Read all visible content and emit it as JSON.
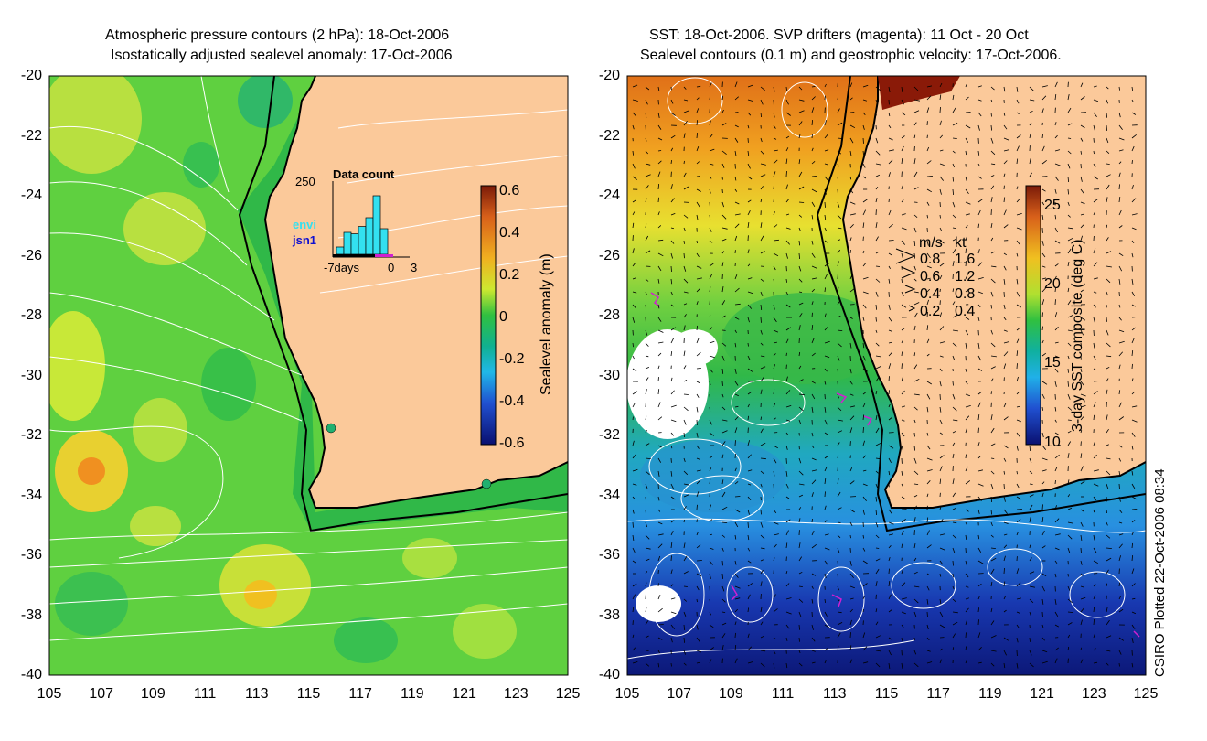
{
  "left_panel": {
    "title_line1": "Atmospheric pressure contours (2 hPa): 18-Oct-2006",
    "title_line2": "Isostatically adjusted sealevel anomaly: 17-Oct-2006",
    "colorbar": {
      "label": "Sealevel anomaly (m)",
      "ticks": [
        "0.6",
        "0.4",
        "0.2",
        "0",
        "-0.2",
        "-0.4",
        "-0.6"
      ]
    },
    "inset": {
      "title": "Data count",
      "ymax": "250",
      "xlabels": [
        "-7days",
        "0",
        "3"
      ],
      "missions": [
        "envi",
        "jsn1"
      ],
      "bars": [
        0.1,
        0.3,
        0.28,
        0.38,
        0.5,
        0.8,
        0.35
      ],
      "colors": {
        "envi": "#33e0f0",
        "jsn1": "#1010d0"
      }
    }
  },
  "right_panel": {
    "title_line1": "SST: 18-Oct-2006. SVP drifters (magenta): 11 Oct - 20 Oct",
    "title_line2": "Sealevel contours (0.1 m) and geostrophic velocity: 17-Oct-2006.",
    "colorbar": {
      "label": "3-day SST composite (deg C)",
      "ticks": [
        "25",
        "20",
        "15",
        "10"
      ]
    },
    "velocity_legend": {
      "header_ms": "m/s",
      "header_kt": "kt",
      "rows": [
        {
          "ms": "0.8",
          "kt": "1.6"
        },
        {
          "ms": "0.6",
          "kt": "1.2"
        },
        {
          "ms": "0.4",
          "kt": "0.8"
        },
        {
          "ms": "0.2",
          "kt": "0.4"
        }
      ]
    }
  },
  "axes": {
    "y_ticks": [
      "-20",
      "-22",
      "-24",
      "-26",
      "-28",
      "-30",
      "-32",
      "-34",
      "-36",
      "-38",
      "-40"
    ],
    "x_ticks": [
      "105",
      "107",
      "109",
      "111",
      "113",
      "115",
      "117",
      "119",
      "121",
      "123",
      "125"
    ]
  },
  "credit": "CSIRO Plotted 22-Oct-2006 08:34",
  "colors": {
    "land": "#fbc99a",
    "coast": "#000000",
    "contour": "#ffffff",
    "drifter": "#d020d0"
  }
}
